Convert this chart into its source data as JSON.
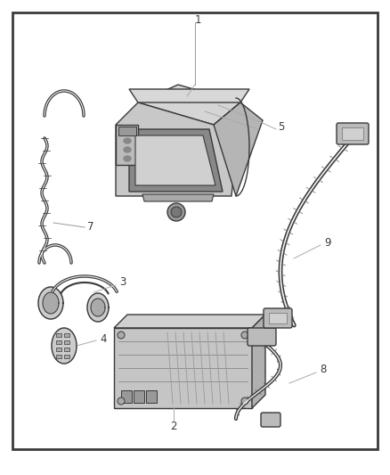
{
  "background_color": "#ffffff",
  "border_color": "#3a3a3a",
  "border_linewidth": 2.0,
  "fig_width": 4.38,
  "fig_height": 5.33,
  "dpi": 100,
  "line_color": "#3a3a3a",
  "label_fontsize": 8.5,
  "fill_light": "#e8e8e8",
  "fill_mid": "#cccccc",
  "fill_dark": "#aaaaaa"
}
